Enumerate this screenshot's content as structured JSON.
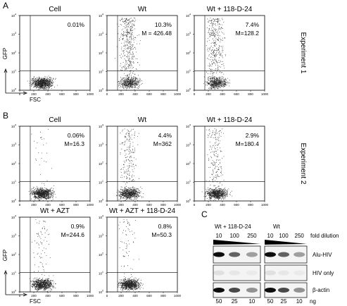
{
  "panel_labels": [
    "A",
    "B",
    "C"
  ],
  "axes": {
    "y_axis_label": "GFP",
    "x_axis_label": "FSC",
    "x_ticks": [
      "0",
      "200",
      "400",
      "600",
      "800",
      "1000"
    ],
    "y_ticks": [
      {
        "base": "10",
        "exp": "0"
      },
      {
        "base": "10",
        "exp": "1"
      },
      {
        "base": "10",
        "exp": "2"
      },
      {
        "base": "10",
        "exp": "3"
      },
      {
        "base": "10",
        "exp": "4"
      }
    ]
  },
  "rows": [
    {
      "row_label": "Experiment 1",
      "plots": [
        {
          "title": "Cell",
          "stats": [
            "0.01%"
          ]
        },
        {
          "title": "Wt",
          "stats": [
            "10.3%",
            "M = 426.48"
          ]
        },
        {
          "title": "Wt + 118-D-24",
          "stats": [
            "7.4%",
            "M=128.2"
          ]
        }
      ]
    },
    {
      "row_label": "Experiment 2",
      "plots": [
        {
          "title": "Cell",
          "stats": [
            "0.06%",
            "M=16.3"
          ]
        },
        {
          "title": "Wt",
          "stats": [
            "4.4%",
            "M=362"
          ]
        },
        {
          "title": "Wt + 118-D-24",
          "stats": [
            "2.9%",
            "M=180.4"
          ]
        }
      ]
    },
    {
      "plots": [
        {
          "title": "Wt + AZT",
          "stats": [
            "0.9%",
            "M=244.6"
          ]
        },
        {
          "title": "Wt + AZT + 118-D-24",
          "stats": [
            "0.8%",
            "M=50.3"
          ]
        }
      ]
    }
  ],
  "gel": {
    "group_labels": [
      "Wt + 118-D-24",
      "Wt"
    ],
    "dilutions": [
      "10",
      "100",
      "250"
    ],
    "dilution_label": "fold dilution",
    "bands": [
      "Alu-HIV",
      "HIV only",
      "β-actin"
    ],
    "amounts": [
      "50",
      "25",
      "10"
    ],
    "amount_unit": "ng"
  }
}
